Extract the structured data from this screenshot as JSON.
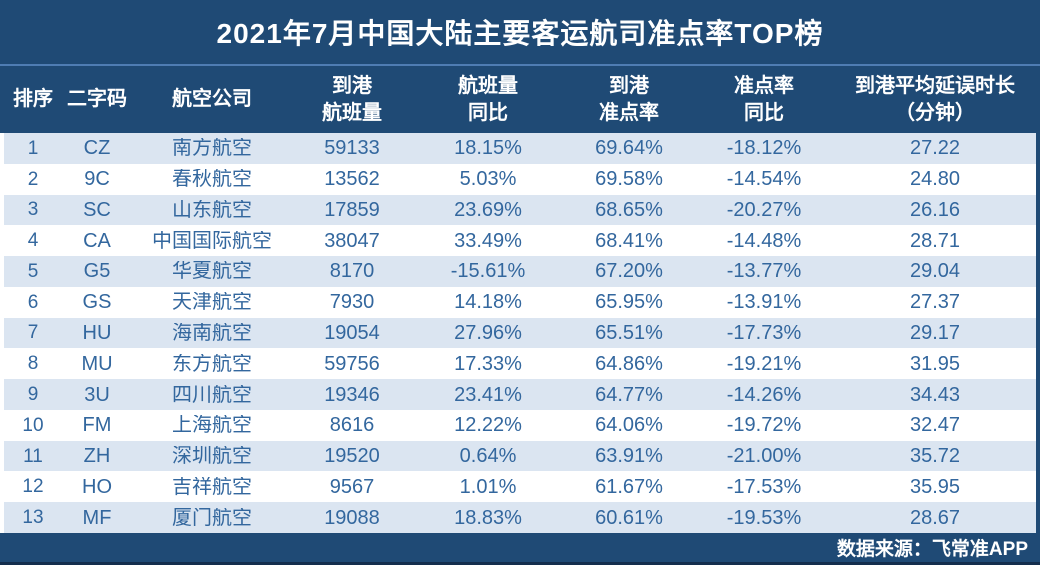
{
  "colors": {
    "navy": "#1F4A75",
    "divider_blue": "#4F7DB3",
    "row_alt_blue": "#DBE5F1",
    "row_white": "#FFFFFF",
    "data_text_blue": "#33679E",
    "edge_dark": "#142E4D"
  },
  "chart_data": {
    "type": "table",
    "title": "2021年7月中国大陆主要客运航司准点率TOP榜",
    "columns": [
      "排序",
      "二字码",
      "航空公司",
      "到港航班量",
      "航班量同比",
      "到港准点率",
      "准点率同比",
      "到港平均延误时长（分钟）"
    ],
    "header_lines": [
      [
        "排序"
      ],
      [
        "二字码"
      ],
      [
        "航空公司"
      ],
      [
        "到港",
        "航班量"
      ],
      [
        "航班量",
        "同比"
      ],
      [
        "到港",
        "准点率"
      ],
      [
        "准点率",
        "同比"
      ],
      [
        "到港平均延误时长",
        "（分钟）"
      ]
    ],
    "rows": [
      [
        "1",
        "CZ",
        "南方航空",
        "59133",
        "18.15%",
        "69.64%",
        "-18.12%",
        "27.22"
      ],
      [
        "2",
        "9C",
        "春秋航空",
        "13562",
        "5.03%",
        "69.58%",
        "-14.54%",
        "24.80"
      ],
      [
        "3",
        "SC",
        "山东航空",
        "17859",
        "23.69%",
        "68.65%",
        "-20.27%",
        "26.16"
      ],
      [
        "4",
        "CA",
        "中国国际航空",
        "38047",
        "33.49%",
        "68.41%",
        "-14.48%",
        "28.71"
      ],
      [
        "5",
        "G5",
        "华夏航空",
        "8170",
        "-15.61%",
        "67.20%",
        "-13.77%",
        "29.04"
      ],
      [
        "6",
        "GS",
        "天津航空",
        "7930",
        "14.18%",
        "65.95%",
        "-13.91%",
        "27.37"
      ],
      [
        "7",
        "HU",
        "海南航空",
        "19054",
        "27.96%",
        "65.51%",
        "-17.73%",
        "29.17"
      ],
      [
        "8",
        "MU",
        "东方航空",
        "59756",
        "17.33%",
        "64.86%",
        "-19.21%",
        "31.95"
      ],
      [
        "9",
        "3U",
        "四川航空",
        "19346",
        "23.41%",
        "64.77%",
        "-14.26%",
        "34.43"
      ],
      [
        "10",
        "FM",
        "上海航空",
        "8616",
        "12.22%",
        "64.06%",
        "-19.72%",
        "32.47"
      ],
      [
        "11",
        "ZH",
        "深圳航空",
        "19520",
        "0.64%",
        "63.91%",
        "-21.00%",
        "35.72"
      ],
      [
        "12",
        "HO",
        "吉祥航空",
        "9567",
        "1.01%",
        "61.67%",
        "-17.53%",
        "35.95"
      ],
      [
        "13",
        "MF",
        "厦门航空",
        "19088",
        "18.83%",
        "60.61%",
        "-19.53%",
        "28.67"
      ]
    ],
    "source_note": "数据来源：飞常准APP"
  }
}
